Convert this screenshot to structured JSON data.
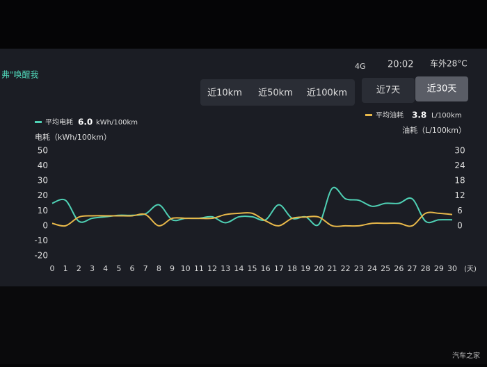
{
  "status_bar": {
    "wake": "弗\"唤醒我",
    "network": "4G",
    "time": "20:02",
    "temp": "车外28°C"
  },
  "tabs": {
    "distance": [
      "近10km",
      "近50km",
      "近100km"
    ],
    "days": [
      "近7天",
      "近30天"
    ],
    "selected": "近30天"
  },
  "watermark": "汽车之家",
  "chart_data": {
    "type": "line",
    "x_unit": "(天)",
    "ylabel": "电耗（kWh/100km）",
    "y2label": "油耗（L/100km）",
    "x": [
      0,
      1,
      2,
      3,
      4,
      5,
      6,
      7,
      8,
      9,
      10,
      11,
      12,
      13,
      14,
      15,
      16,
      17,
      18,
      19,
      20,
      21,
      22,
      23,
      24,
      25,
      26,
      27,
      28,
      29,
      30
    ],
    "xlim": [
      0,
      30
    ],
    "xticks": [
      0,
      1,
      2,
      3,
      4,
      5,
      6,
      7,
      8,
      9,
      10,
      11,
      12,
      13,
      14,
      15,
      16,
      17,
      18,
      19,
      20,
      21,
      22,
      23,
      24,
      25,
      26,
      27,
      28,
      29,
      30
    ],
    "ylim": [
      -20,
      50
    ],
    "yticks": [
      -20,
      -10,
      0,
      10,
      20,
      30,
      40,
      50
    ],
    "y2lim": [
      -12,
      30
    ],
    "y2ticks": [
      0,
      6,
      12,
      18,
      24,
      30
    ],
    "series": [
      {
        "name": "平均电耗",
        "avg": "6.0",
        "unit": "kWh/100km",
        "color": "#4fd1b5",
        "values": [
          15,
          17,
          3,
          5,
          6,
          7,
          7,
          8,
          14,
          4,
          5,
          5,
          6,
          2,
          6,
          6,
          4,
          14,
          5,
          6,
          1,
          25,
          18,
          17,
          13,
          15,
          15,
          18,
          3,
          4,
          4
        ]
      },
      {
        "name": "平均油耗",
        "avg": "3.8",
        "unit": "L/100km",
        "color": "#e8b84a",
        "axis": "y2",
        "values": [
          1,
          0,
          3.5,
          4,
          4,
          4,
          4,
          4.5,
          0,
          3,
          3,
          3,
          3,
          4.5,
          5,
          5,
          2,
          0,
          3,
          3.5,
          3.5,
          0,
          0,
          0,
          1,
          1,
          1,
          0,
          5,
          5,
          4.5
        ]
      }
    ]
  }
}
